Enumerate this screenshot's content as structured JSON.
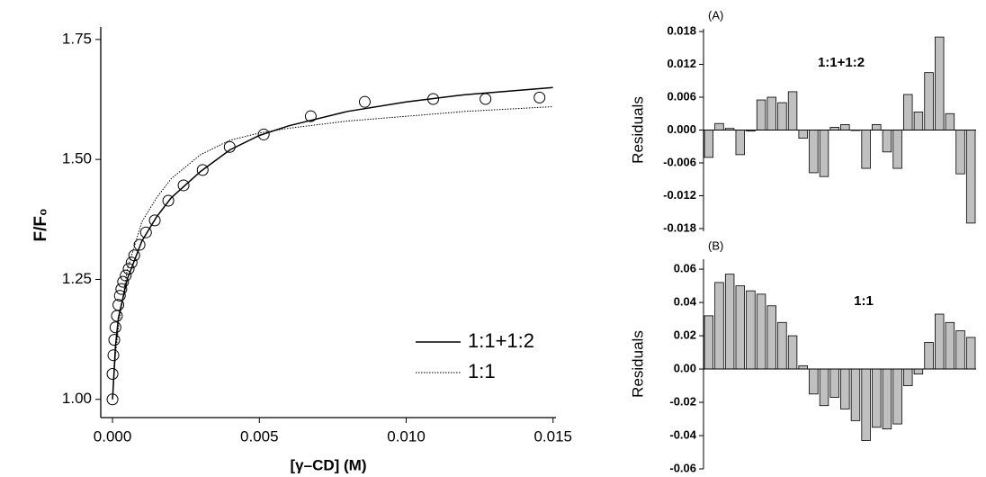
{
  "chart_data": [
    {
      "type": "line",
      "xlabel": "[γ–CD] (M)",
      "ylabel": "F/F₀",
      "xlim": [
        -0.0004,
        0.0151
      ],
      "ylim": [
        0.962,
        1.776
      ],
      "xticks": [
        {
          "value": 0,
          "label": "0.000"
        },
        {
          "value": 0.005,
          "label": "0.005"
        },
        {
          "value": 0.01,
          "label": "0.010"
        },
        0.015
      ],
      "yticks": [
        {
          "value": 1,
          "label": "1.00"
        },
        1.25,
        {
          "value": 1.5,
          "label": "1.50"
        },
        1.75
      ],
      "legend": "lower-right",
      "series": [
        {
          "style": "markers",
          "color": "#000000",
          "x": [
            0,
            0,
            3e-05,
            6e-05,
            0.0001,
            0.00015,
            0.0002,
            0.00025,
            0.0003,
            0.00036,
            0.00045,
            0.00055,
            0.00065,
            0.00074,
            0.00092,
            0.00114,
            0.00144,
            0.0019,
            0.00242,
            0.00307,
            0.00399,
            0.00515,
            0.00675,
            0.00859,
            0.01092,
            0.0127,
            0.01454
          ],
          "values": [
            1.0,
            1.053,
            1.092,
            1.124,
            1.15,
            1.174,
            1.197,
            1.216,
            1.23,
            1.245,
            1.258,
            1.272,
            1.285,
            1.3,
            1.322,
            1.348,
            1.373,
            1.414,
            1.446,
            1.478,
            1.526,
            1.552,
            1.59,
            1.62,
            1.626,
            1.626,
            1.629
          ]
        },
        {
          "name": "1:1+1:2",
          "style": "solid",
          "color": "#000000",
          "x": [
            0,
            0.0001,
            0.0002,
            0.0005,
            0.001,
            0.0015,
            0.002,
            0.003,
            0.004,
            0.005,
            0.006,
            0.008,
            0.01,
            0.012,
            0.015
          ],
          "values": [
            1.0,
            1.11,
            1.17,
            1.25,
            1.33,
            1.38,
            1.42,
            1.475,
            1.52,
            1.55,
            1.57,
            1.6,
            1.62,
            1.635,
            1.65
          ]
        },
        {
          "name": "1:1",
          "style": "dotted",
          "color": "#000000",
          "x": [
            0,
            0.0001,
            0.0002,
            0.0005,
            0.001,
            0.0015,
            0.002,
            0.003,
            0.004,
            0.005,
            0.006,
            0.008,
            0.01,
            0.012,
            0.015
          ],
          "values": [
            1.0,
            1.09,
            1.15,
            1.27,
            1.37,
            1.42,
            1.46,
            1.51,
            1.54,
            1.555,
            1.565,
            1.58,
            1.59,
            1.6,
            1.61
          ]
        }
      ]
    },
    {
      "type": "bar",
      "ylabel": "Residuals",
      "annotations": [
        "(A)",
        "1:1+1:2"
      ],
      "color": "#c0c0c0",
      "ylim": [
        -0.0185,
        0.0185
      ],
      "yticks": [
        0.018,
        0.012,
        0.006,
        {
          "value": 0,
          "label": "0.000"
        },
        -0.006,
        -0.012,
        -0.018
      ],
      "values": [
        -0.005,
        0.0012,
        0.0003,
        -0.0045,
        -0.0002,
        0.0055,
        0.006,
        0.005,
        0.007,
        -0.0015,
        -0.0078,
        -0.0085,
        0.0005,
        0.001,
        0,
        -0.007,
        0.001,
        -0.004,
        -0.007,
        0.0065,
        0.0033,
        0.0105,
        0.017,
        0.003,
        -0.008,
        -0.017
      ]
    },
    {
      "type": "bar",
      "ylabel": "Residuals",
      "annotations": [
        "(B)",
        "1:1"
      ],
      "color": "#c0c0c0",
      "ylim": [
        -0.06,
        0.066
      ],
      "yticks": [
        0.06,
        0.04,
        0.02,
        {
          "value": 0,
          "label": "0.00"
        },
        -0.02,
        -0.04,
        -0.06
      ],
      "values": [
        0.032,
        0.052,
        0.057,
        0.05,
        0.047,
        0.045,
        0.038,
        0.028,
        0.02,
        0.002,
        -0.015,
        -0.022,
        -0.017,
        -0.024,
        -0.031,
        -0.043,
        -0.035,
        -0.036,
        -0.033,
        -0.01,
        -0.003,
        0.016,
        0.033,
        0.028,
        0.023,
        0.019
      ]
    }
  ]
}
